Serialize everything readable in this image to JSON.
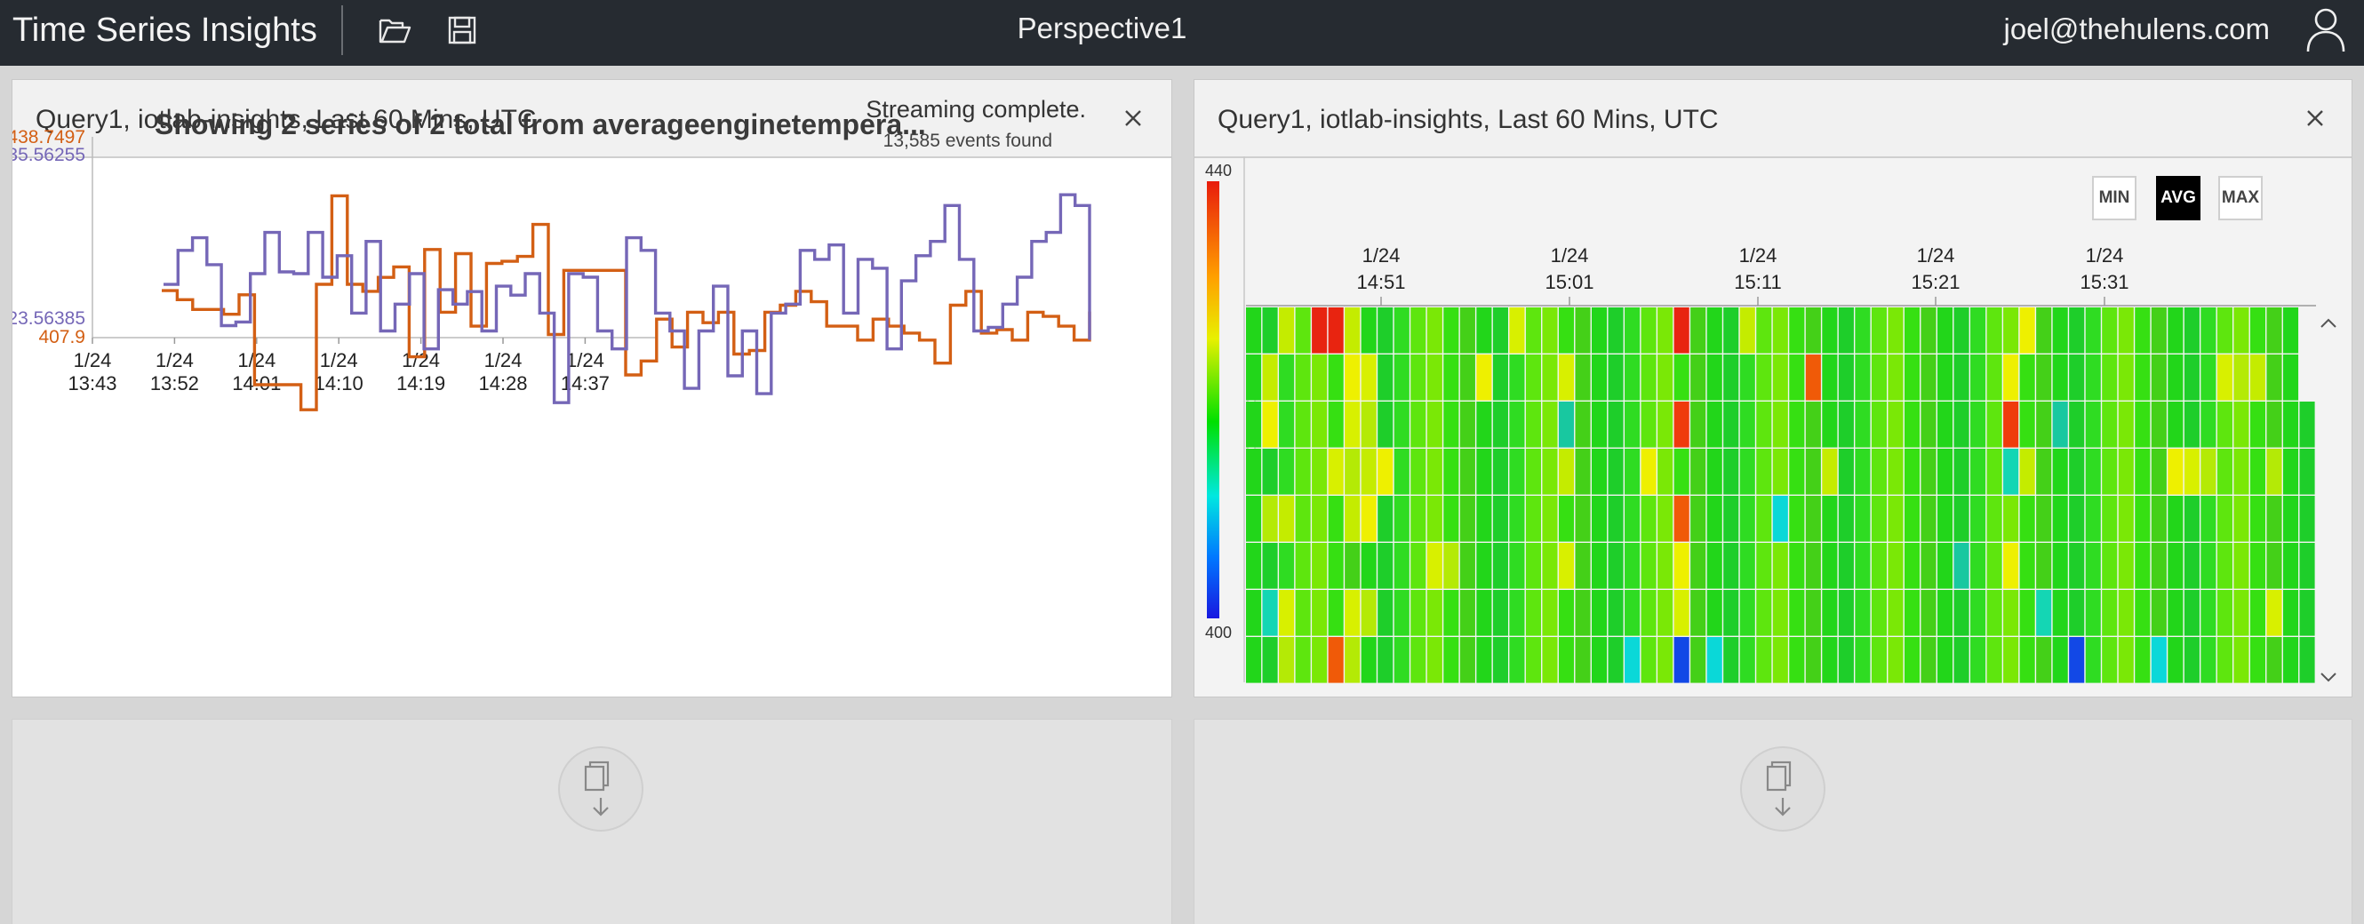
{
  "topbar": {
    "app_title": "Time Series Insights",
    "perspective_title": "Perspective1",
    "user_email": "joel@thehulens.com",
    "icons": [
      "folder-open-icon",
      "save-icon",
      "user-icon"
    ]
  },
  "panels": {
    "left": {
      "title": "Query1, iotlab-insights, Last 60 Mins, UTC",
      "status": "Streaming complete.",
      "events": "13,585 events found"
    },
    "right": {
      "title": "Query1, iotlab-insights, Last 60 Mins, UTC"
    }
  },
  "colors": {
    "series_orange": "#d35f14",
    "series_purple": "#7567b7",
    "topbar": "#262b31"
  },
  "chart_data": [
    {
      "type": "line",
      "title": "Showing 2 series of 2 total from averageenginetempera...",
      "x_tick_labels": [
        [
          "1/24",
          "13:43"
        ],
        [
          "1/24",
          "13:52"
        ],
        [
          "1/24",
          "14:01"
        ],
        [
          "1/24",
          "14:10"
        ],
        [
          "1/24",
          "14:19"
        ],
        [
          "1/24",
          "14:28"
        ],
        [
          "1/24",
          "14:37"
        ]
      ],
      "x_tick_minutes": [
        0,
        9,
        18,
        27,
        36,
        45,
        54
      ],
      "x_range_minutes": [
        0,
        60
      ],
      "series": [
        {
          "color": "#d35f14",
          "y_axis_labels": [
            "438.7497",
            "407.9"
          ],
          "ylim": [
            407.9,
            438.7497
          ],
          "values": [
            425.1,
            423.8,
            422.4,
            422.4,
            421.7,
            424.5,
            411.6,
            411.6,
            411.6,
            408.0,
            426.0,
            438.7,
            426.0,
            425.0,
            427.0,
            428.5,
            415.6,
            431.0,
            422.0,
            430.4,
            420.0,
            429.0,
            429.3,
            430.0,
            434.6,
            418.8,
            428.0,
            428.0,
            428.0,
            428.0,
            413.0,
            415.0,
            421.0,
            417.0,
            422.0,
            420.5,
            422.0,
            416.0,
            416.5,
            422.0,
            423.0,
            425.0,
            423.5,
            420.0,
            420.0,
            418.0,
            421.0,
            420.0,
            419.0,
            418.0,
            414.7,
            423.0,
            425.0,
            419.0,
            419.5,
            418.0,
            422.0,
            421.4,
            420.0,
            418.0,
            422.1
          ]
        },
        {
          "color": "#7567b7",
          "y_axis_labels": [
            "35.56255",
            "23.56385"
          ],
          "ylim": [
            23.56385,
            35.56255
          ],
          "values": [
            30.6,
            32.5,
            33.2,
            31.7,
            28.3,
            28.5,
            31.2,
            33.5,
            31.3,
            31.2,
            33.5,
            31.0,
            32.2,
            29.0,
            33.0,
            28.0,
            29.5,
            31.2,
            27.0,
            30.3,
            29.5,
            30.2,
            28.0,
            30.5,
            30.0,
            31.2,
            29.0,
            24.0,
            31.2,
            31.0,
            28.0,
            27.0,
            33.2,
            32.5,
            29.0,
            28.0,
            24.8,
            28.0,
            30.5,
            25.5,
            28.0,
            24.5,
            29.0,
            29.5,
            32.5,
            32.0,
            32.8,
            29.0,
            32.0,
            31.5,
            27.0,
            30.8,
            32.2,
            33.0,
            35.0,
            32.0,
            28.0,
            28.2,
            29.5,
            31.0,
            33.0,
            33.5,
            35.6,
            35.0,
            27.5
          ]
        }
      ]
    },
    {
      "type": "heatmap",
      "scale_max_label": "440",
      "scale_min_label": "400",
      "x_tick_labels": [
        [
          "1/24",
          "14:51"
        ],
        [
          "1/24",
          "15:01"
        ],
        [
          "1/24",
          "15:11"
        ],
        [
          "1/24",
          "15:21"
        ],
        [
          "1/24",
          "15:31"
        ]
      ],
      "aggregation_buttons": [
        {
          "label": "MIN",
          "active": false
        },
        {
          "label": "AVG",
          "active": true
        },
        {
          "label": "MAX",
          "active": false
        }
      ],
      "rows": [
        "GGYGRRYGGGGGGGGGYGGGGGGGGGRGGGYGGGGGGGGGGGGGGGGYGGGGGGGGGGGGGGGG",
        "GYGGGGYYGGGGGGYGGGGYGGGGGGGGGGGGGGRGGGGGGGGGGGYGGGGGGGGGGGGYYYGG",
        "GYGGGGYYGGGGGGGGGGGCGGGGGGRGGGGGGGGGGGGGGGGGGGRGGCGGGGGGGGGGGGGGG",
        "GGGGGYYYYGGGGGGGGGGYGGGGYGGGGGGGGGGYGGGGGGGGGGCYGGGGGGGGYYYGGGYGG",
        "GYYGGGYYGGGGGGGGGGGGGGGGGGRGGGGGCGGGGGGGGGGGGGGGGGGGGGGGGGGGGGGGG",
        "GGGGGGGGGGGYYGGGGGGYGGGGGGYGGGGGGGGGGGGGGGGCGGYGGGGGGGGGGGGGGGGGG",
        "GCYGGGYYGGGGGGGGGGGGGGGGGGYGGGGGGGGGGGGGGGGGGGGGCGGGGGGGGGGGGGYGG",
        "GGYGGRYGGGGGGGGGGGGGGGGCGGBGCGGGGGGGGGGGGGGGGGGGGGBGGGGCGGGGGGGGG"
      ]
    }
  ]
}
